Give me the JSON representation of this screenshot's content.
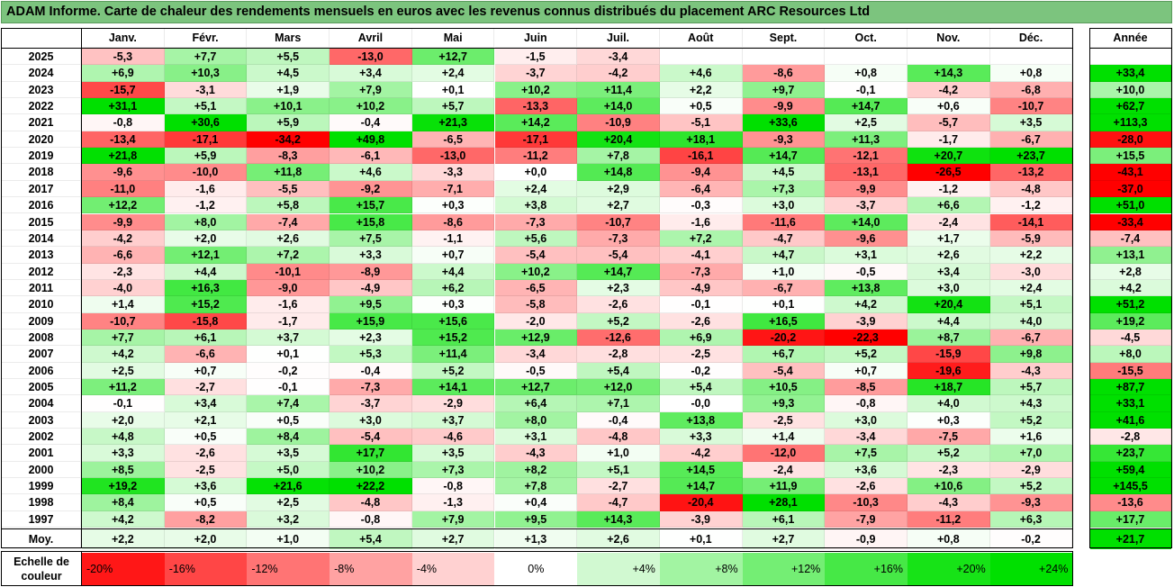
{
  "title": "ADAM Informe. Carte de chaleur des rendements mensuels en euros avec les revenus connus distribués du placement ARC Resources Ltd",
  "chart_data": {
    "type": "heatmap",
    "months": [
      "Janv.",
      "Févr.",
      "Mars",
      "Avril",
      "Mai",
      "Juin",
      "Juil.",
      "Août",
      "Sept.",
      "Oct.",
      "Nov.",
      "Déc."
    ],
    "annual_header": "Année",
    "avg_label": "Moy.",
    "rows": [
      {
        "year": "2025",
        "values": [
          -5.3,
          7.7,
          5.5,
          -13.0,
          12.7,
          -1.5,
          -3.4,
          null,
          null,
          null,
          null,
          null
        ],
        "annual": null
      },
      {
        "year": "2024",
        "values": [
          6.9,
          10.3,
          4.5,
          3.4,
          2.4,
          -3.7,
          -4.2,
          4.6,
          -8.6,
          0.8,
          14.3,
          0.8
        ],
        "annual": 33.4
      },
      {
        "year": "2023",
        "values": [
          -15.7,
          -3.1,
          1.9,
          7.9,
          0.1,
          10.2,
          11.4,
          2.2,
          9.7,
          -0.1,
          -4.2,
          -6.8
        ],
        "annual": 10.0
      },
      {
        "year": "2022",
        "values": [
          31.1,
          5.1,
          10.1,
          10.2,
          5.7,
          -13.3,
          14.0,
          0.5,
          -9.9,
          14.7,
          0.6,
          -10.7
        ],
        "annual": 62.7
      },
      {
        "year": "2021",
        "values": [
          -0.8,
          30.6,
          5.9,
          -0.4,
          21.3,
          14.2,
          -10.9,
          -5.1,
          33.6,
          2.5,
          -5.7,
          3.5
        ],
        "annual": 113.3
      },
      {
        "year": "2020",
        "values": [
          -13.4,
          -17.1,
          -34.2,
          49.8,
          -6.5,
          -17.1,
          20.4,
          18.1,
          -9.3,
          11.3,
          -1.7,
          -6.7
        ],
        "annual": -28.0
      },
      {
        "year": "2019",
        "values": [
          21.8,
          5.9,
          -8.3,
          -6.1,
          -13.0,
          -11.2,
          7.8,
          -16.1,
          14.7,
          -12.1,
          20.7,
          23.7
        ],
        "annual": 15.5
      },
      {
        "year": "2018",
        "values": [
          -9.6,
          -10.0,
          11.8,
          4.6,
          -3.3,
          0.0,
          14.8,
          -9.4,
          4.5,
          -13.1,
          -26.5,
          -13.2
        ],
        "annual": -43.1
      },
      {
        "year": "2017",
        "values": [
          -11.0,
          -1.6,
          -5.5,
          -9.2,
          -7.1,
          2.4,
          2.9,
          -6.4,
          7.3,
          -9.9,
          -1.2,
          -4.8
        ],
        "annual": -37.0
      },
      {
        "year": "2016",
        "values": [
          12.2,
          -1.2,
          5.8,
          15.7,
          0.3,
          3.8,
          2.7,
          -0.3,
          3.0,
          -3.7,
          6.6,
          -1.2
        ],
        "annual": 51.0
      },
      {
        "year": "2015",
        "values": [
          -9.9,
          8.0,
          -7.4,
          15.8,
          -8.6,
          -7.3,
          -10.7,
          -1.6,
          -11.6,
          14.0,
          -2.4,
          -14.1
        ],
        "annual": -33.4
      },
      {
        "year": "2014",
        "values": [
          -4.2,
          2.0,
          2.6,
          7.5,
          -1.1,
          5.6,
          -7.3,
          7.2,
          -4.7,
          -9.6,
          1.7,
          -5.9
        ],
        "annual": -7.4
      },
      {
        "year": "2013",
        "values": [
          -6.6,
          12.1,
          7.2,
          3.3,
          0.7,
          -5.4,
          -5.4,
          -4.1,
          4.7,
          3.1,
          2.6,
          2.2
        ],
        "annual": 13.1
      },
      {
        "year": "2012",
        "values": [
          -2.3,
          4.4,
          -10.1,
          -8.9,
          4.4,
          10.2,
          14.7,
          -7.3,
          1.0,
          -0.5,
          3.4,
          -3.0
        ],
        "annual": 2.8
      },
      {
        "year": "2011",
        "values": [
          -4.0,
          16.3,
          -9.0,
          -4.9,
          6.2,
          -6.5,
          2.3,
          -4.9,
          -6.7,
          13.8,
          3.0,
          2.4
        ],
        "annual": 4.2
      },
      {
        "year": "2010",
        "values": [
          1.4,
          15.2,
          -1.6,
          9.5,
          0.3,
          -5.8,
          -2.6,
          -0.1,
          0.1,
          4.2,
          20.4,
          5.1
        ],
        "annual": 51.2
      },
      {
        "year": "2009",
        "values": [
          -10.7,
          -15.8,
          -1.7,
          15.9,
          15.6,
          -2.0,
          5.2,
          -2.6,
          16.5,
          -3.9,
          4.4,
          4.0
        ],
        "annual": 19.2
      },
      {
        "year": "2008",
        "values": [
          7.7,
          6.1,
          3.7,
          2.3,
          15.2,
          12.9,
          -12.6,
          6.9,
          -20.2,
          -22.3,
          8.7,
          -6.7
        ],
        "annual": -4.5
      },
      {
        "year": "2007",
        "values": [
          4.2,
          -6.6,
          0.1,
          5.3,
          11.4,
          -3.4,
          -2.8,
          -2.5,
          6.7,
          5.2,
          -15.9,
          9.8
        ],
        "annual": 8.0
      },
      {
        "year": "2006",
        "values": [
          2.5,
          0.7,
          -0.2,
          -0.4,
          5.2,
          -0.5,
          5.4,
          -0.2,
          -5.4,
          0.7,
          -19.6,
          -4.3
        ],
        "annual": -15.5
      },
      {
        "year": "2005",
        "values": [
          11.2,
          -2.7,
          -0.1,
          -7.3,
          14.1,
          12.7,
          12.0,
          5.4,
          10.5,
          -8.5,
          18.7,
          5.7
        ],
        "annual": 87.7
      },
      {
        "year": "2004",
        "values": [
          -0.1,
          3.4,
          7.4,
          -3.7,
          -2.9,
          6.4,
          7.1,
          -0.0,
          9.3,
          -0.8,
          4.0,
          4.3
        ],
        "annual": 33.1
      },
      {
        "year": "2003",
        "values": [
          2.0,
          2.1,
          0.5,
          3.0,
          3.7,
          8.0,
          -0.4,
          13.8,
          -2.5,
          3.0,
          0.3,
          5.2
        ],
        "annual": 41.6
      },
      {
        "year": "2002",
        "values": [
          4.8,
          0.5,
          8.4,
          -5.4,
          -4.6,
          3.1,
          -4.8,
          3.3,
          1.4,
          -3.4,
          -7.5,
          1.6
        ],
        "annual": -2.8
      },
      {
        "year": "2001",
        "values": [
          3.3,
          -2.6,
          3.5,
          17.7,
          3.5,
          -4.3,
          1.0,
          -4.2,
          -12.0,
          7.5,
          5.2,
          7.0
        ],
        "annual": 23.7
      },
      {
        "year": "2000",
        "values": [
          8.5,
          -2.5,
          5.0,
          10.2,
          7.3,
          8.2,
          5.1,
          14.5,
          -2.4,
          3.6,
          -2.3,
          -2.9
        ],
        "annual": 59.4
      },
      {
        "year": "1999",
        "values": [
          19.2,
          3.6,
          21.6,
          22.2,
          -0.8,
          7.8,
          -2.7,
          14.7,
          11.9,
          -2.6,
          10.6,
          5.2
        ],
        "annual": 145.5
      },
      {
        "year": "1998",
        "values": [
          8.4,
          0.5,
          2.5,
          -4.8,
          -1.3,
          0.4,
          -4.7,
          -20.4,
          28.1,
          -10.3,
          -4.3,
          -9.3
        ],
        "annual": -13.6
      },
      {
        "year": "1997",
        "values": [
          4.2,
          -8.2,
          3.2,
          -0.8,
          7.9,
          9.5,
          14.3,
          -3.9,
          6.1,
          -7.9,
          -11.2,
          6.3
        ],
        "annual": 17.7
      }
    ],
    "averages": [
      2.2,
      2.0,
      1.0,
      5.4,
      2.7,
      1.3,
      2.6,
      0.1,
      2.7,
      -0.9,
      0.8,
      -0.2
    ],
    "annual_average": 21.7,
    "legend": {
      "label": "Echelle de couleur",
      "steps": [
        "-20%",
        "-16%",
        "-12%",
        "-8%",
        "-4%",
        "0%",
        "+4%",
        "+8%",
        "+12%",
        "+16%",
        "+20%",
        "+24%"
      ],
      "values": [
        -20,
        -16,
        -12,
        -8,
        -4,
        0,
        4,
        8,
        12,
        16,
        20,
        24
      ]
    },
    "colors": {
      "negative": "#ff0000",
      "neutral": "#ffffff",
      "positive": "#00e000",
      "title_bg": "#7cc47e"
    }
  }
}
